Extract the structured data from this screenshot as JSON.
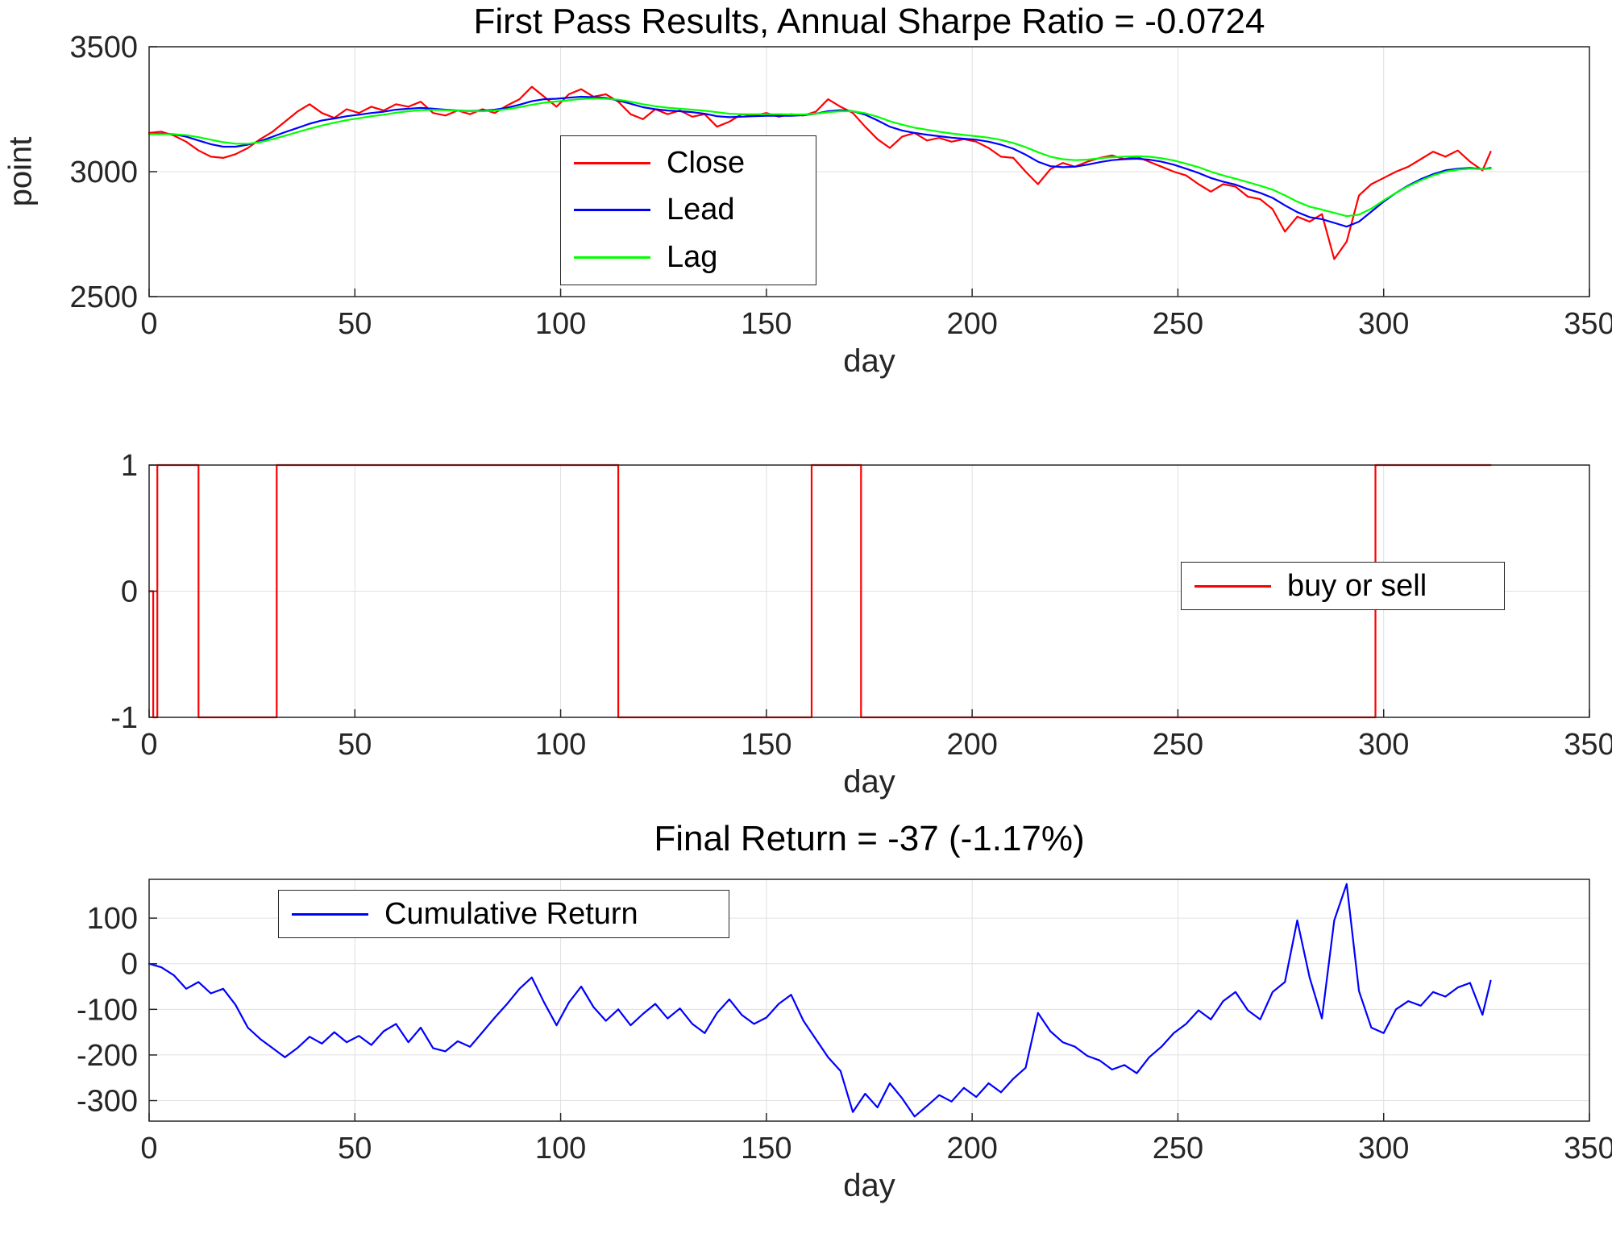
{
  "figure": {
    "background": "#ffffff",
    "axis_color": "#262626",
    "grid_color": "#e0e0e0",
    "tick_color": "#262626",
    "title_color": "#000000"
  },
  "chart_data": [
    {
      "id": "price",
      "type": "line",
      "title": "First Pass Results, Annual Sharpe Ratio = -0.0724",
      "xlabel": "day",
      "ylabel": "point",
      "xlim": [
        0,
        350
      ],
      "ylim": [
        2500,
        3500
      ],
      "xticks": [
        0,
        50,
        100,
        150,
        200,
        250,
        300,
        350
      ],
      "yticks": [
        2500,
        3000,
        3500
      ],
      "grid": true,
      "legend_position": "upper-center",
      "x": [
        0,
        3,
        6,
        9,
        12,
        15,
        18,
        21,
        24,
        27,
        30,
        33,
        36,
        39,
        42,
        45,
        48,
        51,
        54,
        57,
        60,
        63,
        66,
        69,
        72,
        75,
        78,
        81,
        84,
        87,
        90,
        93,
        96,
        99,
        102,
        105,
        108,
        111,
        114,
        117,
        120,
        123,
        126,
        129,
        132,
        135,
        138,
        141,
        144,
        147,
        150,
        153,
        156,
        159,
        162,
        165,
        168,
        171,
        174,
        177,
        180,
        183,
        186,
        189,
        192,
        195,
        198,
        201,
        204,
        207,
        210,
        213,
        216,
        219,
        222,
        225,
        228,
        231,
        234,
        237,
        240,
        243,
        246,
        249,
        252,
        255,
        258,
        261,
        264,
        267,
        270,
        273,
        276,
        279,
        282,
        285,
        288,
        291,
        294,
        297,
        300,
        303,
        306,
        309,
        312,
        315,
        318,
        321,
        324,
        326
      ],
      "series": [
        {
          "name": "Close",
          "color": "#ff0000",
          "values": [
            3155,
            3160,
            3145,
            3120,
            3085,
            3060,
            3055,
            3070,
            3095,
            3130,
            3160,
            3200,
            3240,
            3270,
            3235,
            3215,
            3250,
            3235,
            3260,
            3245,
            3270,
            3260,
            3280,
            3235,
            3225,
            3245,
            3230,
            3250,
            3235,
            3265,
            3290,
            3340,
            3300,
            3260,
            3310,
            3330,
            3300,
            3310,
            3280,
            3230,
            3210,
            3250,
            3230,
            3245,
            3220,
            3230,
            3180,
            3200,
            3230,
            3225,
            3235,
            3220,
            3230,
            3225,
            3240,
            3290,
            3260,
            3235,
            3180,
            3130,
            3095,
            3140,
            3155,
            3125,
            3135,
            3120,
            3130,
            3120,
            3095,
            3060,
            3055,
            3000,
            2950,
            3010,
            3035,
            3020,
            3040,
            3055,
            3065,
            3050,
            3060,
            3040,
            3020,
            3000,
            2985,
            2950,
            2920,
            2950,
            2940,
            2900,
            2890,
            2850,
            2760,
            2820,
            2800,
            2830,
            2650,
            2720,
            2905,
            2950,
            2975,
            3000,
            3020,
            3050,
            3080,
            3060,
            3085,
            3040,
            3005,
            3080
          ]
        },
        {
          "name": "Lead",
          "color": "#0000ff",
          "values": [
            3150,
            3152,
            3150,
            3140,
            3125,
            3110,
            3100,
            3100,
            3108,
            3122,
            3140,
            3158,
            3175,
            3192,
            3205,
            3213,
            3222,
            3228,
            3235,
            3240,
            3248,
            3252,
            3255,
            3252,
            3248,
            3245,
            3243,
            3244,
            3248,
            3256,
            3268,
            3282,
            3290,
            3292,
            3296,
            3300,
            3298,
            3295,
            3285,
            3272,
            3258,
            3250,
            3245,
            3242,
            3238,
            3232,
            3222,
            3218,
            3220,
            3222,
            3224,
            3224,
            3224,
            3226,
            3232,
            3242,
            3246,
            3242,
            3228,
            3205,
            3180,
            3165,
            3155,
            3148,
            3142,
            3136,
            3132,
            3128,
            3120,
            3108,
            3092,
            3068,
            3040,
            3022,
            3018,
            3020,
            3028,
            3038,
            3046,
            3050,
            3052,
            3048,
            3040,
            3028,
            3012,
            2995,
            2975,
            2960,
            2948,
            2930,
            2915,
            2895,
            2865,
            2838,
            2818,
            2810,
            2795,
            2780,
            2800,
            2840,
            2880,
            2915,
            2945,
            2970,
            2990,
            3005,
            3012,
            3015,
            3010,
            3015
          ]
        },
        {
          "name": "Lag",
          "color": "#00ff00",
          "values": [
            3150,
            3150,
            3150,
            3146,
            3138,
            3128,
            3118,
            3112,
            3112,
            3118,
            3130,
            3144,
            3158,
            3172,
            3185,
            3196,
            3206,
            3214,
            3222,
            3228,
            3236,
            3242,
            3246,
            3247,
            3246,
            3244,
            3242,
            3242,
            3245,
            3250,
            3258,
            3268,
            3276,
            3281,
            3286,
            3291,
            3293,
            3292,
            3288,
            3280,
            3270,
            3262,
            3256,
            3252,
            3248,
            3244,
            3238,
            3232,
            3230,
            3230,
            3230,
            3230,
            3229,
            3229,
            3232,
            3238,
            3242,
            3242,
            3234,
            3220,
            3202,
            3188,
            3176,
            3168,
            3160,
            3153,
            3147,
            3142,
            3136,
            3127,
            3115,
            3098,
            3078,
            3060,
            3050,
            3046,
            3048,
            3054,
            3058,
            3060,
            3062,
            3060,
            3054,
            3045,
            3032,
            3018,
            3000,
            2985,
            2972,
            2958,
            2944,
            2928,
            2905,
            2880,
            2860,
            2848,
            2835,
            2822,
            2828,
            2852,
            2885,
            2915,
            2942,
            2965,
            2985,
            3000,
            3008,
            3012,
            3010,
            3012
          ]
        }
      ]
    },
    {
      "id": "signal",
      "type": "line",
      "title": "",
      "xlabel": "day",
      "ylabel": "",
      "xlim": [
        0,
        350
      ],
      "ylim": [
        -1,
        1
      ],
      "xticks": [
        0,
        50,
        100,
        150,
        200,
        250,
        300,
        350
      ],
      "yticks": [
        -1,
        0,
        1
      ],
      "grid": true,
      "legend_position": "right",
      "series": [
        {
          "name": "buy or sell",
          "color": "#ff0000",
          "points": [
            [
              0,
              0
            ],
            [
              1,
              0
            ],
            [
              1,
              -1
            ],
            [
              2,
              -1
            ],
            [
              2,
              1
            ],
            [
              12,
              1
            ],
            [
              12,
              -1
            ],
            [
              31,
              -1
            ],
            [
              31,
              1
            ],
            [
              114,
              1
            ],
            [
              114,
              -1
            ],
            [
              161,
              -1
            ],
            [
              161,
              1
            ],
            [
              173,
              1
            ],
            [
              173,
              -1
            ],
            [
              298,
              -1
            ],
            [
              298,
              1
            ],
            [
              326,
              1
            ]
          ]
        }
      ]
    },
    {
      "id": "cumret",
      "type": "line",
      "title": "Final Return = -37 (-1.17%)",
      "xlabel": "day",
      "ylabel": "",
      "xlim": [
        0,
        350
      ],
      "ylim": [
        -345,
        185
      ],
      "xticks": [
        0,
        50,
        100,
        150,
        200,
        250,
        300,
        350
      ],
      "yticks": [
        -300,
        -200,
        -100,
        0,
        100
      ],
      "grid": true,
      "legend_position": "upper-left",
      "x": [
        0,
        3,
        6,
        9,
        12,
        15,
        18,
        21,
        24,
        27,
        30,
        33,
        36,
        39,
        42,
        45,
        48,
        51,
        54,
        57,
        60,
        63,
        66,
        69,
        72,
        75,
        78,
        81,
        84,
        87,
        90,
        93,
        96,
        99,
        102,
        105,
        108,
        111,
        114,
        117,
        120,
        123,
        126,
        129,
        132,
        135,
        138,
        141,
        144,
        147,
        150,
        153,
        156,
        159,
        162,
        165,
        168,
        171,
        174,
        177,
        180,
        183,
        186,
        189,
        192,
        195,
        198,
        201,
        204,
        207,
        210,
        213,
        216,
        219,
        222,
        225,
        228,
        231,
        234,
        237,
        240,
        243,
        246,
        249,
        252,
        255,
        258,
        261,
        264,
        267,
        270,
        273,
        276,
        279,
        282,
        285,
        288,
        291,
        294,
        297,
        300,
        303,
        306,
        309,
        312,
        315,
        318,
        321,
        324,
        326
      ],
      "series": [
        {
          "name": "Cumulative Return",
          "color": "#0000ff",
          "values": [
            0,
            -8,
            -25,
            -55,
            -40,
            -65,
            -55,
            -90,
            -140,
            -165,
            -185,
            -205,
            -185,
            -160,
            -175,
            -150,
            -172,
            -158,
            -178,
            -148,
            -132,
            -172,
            -140,
            -185,
            -192,
            -170,
            -182,
            -150,
            -118,
            -88,
            -55,
            -30,
            -85,
            -135,
            -85,
            -50,
            -95,
            -125,
            -100,
            -135,
            -110,
            -88,
            -120,
            -98,
            -132,
            -152,
            -108,
            -78,
            -112,
            -132,
            -118,
            -88,
            -68,
            -125,
            -165,
            -205,
            -235,
            -325,
            -285,
            -315,
            -262,
            -295,
            -335,
            -312,
            -288,
            -302,
            -272,
            -292,
            -262,
            -282,
            -252,
            -228,
            -108,
            -148,
            -172,
            -182,
            -202,
            -212,
            -232,
            -222,
            -240,
            -205,
            -182,
            -152,
            -132,
            -102,
            -122,
            -82,
            -62,
            -102,
            -122,
            -62,
            -40,
            95,
            -30,
            -120,
            95,
            175,
            -60,
            -140,
            -152,
            -100,
            -82,
            -92,
            -62,
            -72,
            -52,
            -42,
            -112,
            -37
          ]
        }
      ]
    }
  ]
}
